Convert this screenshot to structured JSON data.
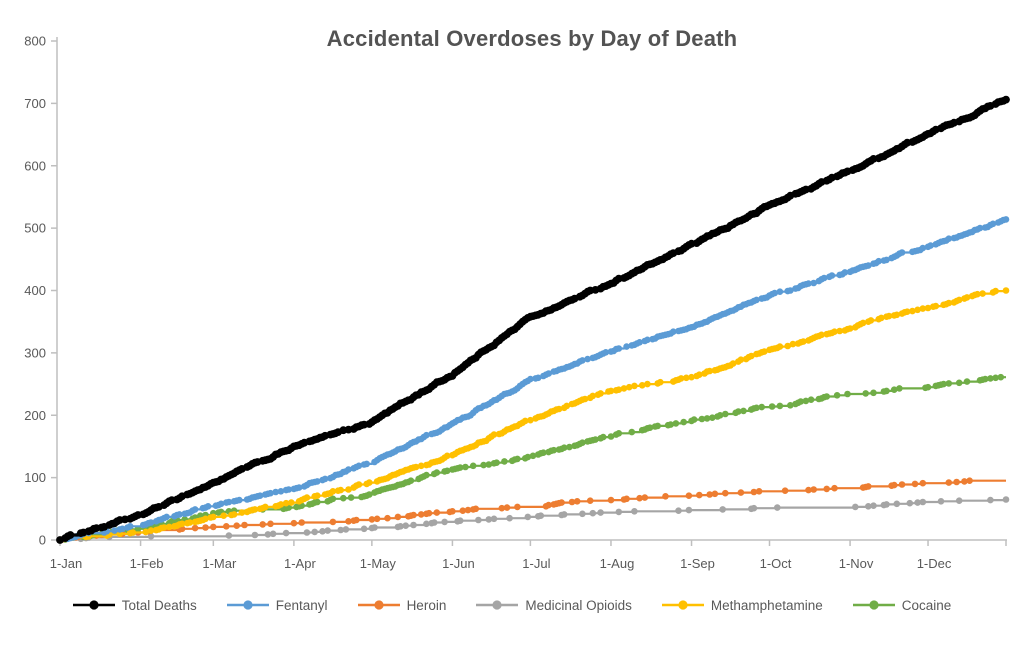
{
  "page": {
    "background": "#ffffff"
  },
  "chart_data": {
    "type": "line",
    "title": "Accidental Overdoses by Day of Death",
    "subtitle": "",
    "xlabel": "",
    "ylabel": "",
    "grid": false,
    "legend_position": "bottom",
    "marker_style": "circle",
    "axis_color": "#bfbfbf",
    "label_color": "#595959",
    "title_color": "#535353",
    "x_axis": {
      "tick_labels": [
        "1-Jan",
        "1-Feb",
        "1-Mar",
        "1-Apr",
        "1-May",
        "1-Jun",
        "1-Jul",
        "1-Aug",
        "1-Sep",
        "1-Oct",
        "1-Nov",
        "1-Dec"
      ],
      "anchor_dates": [
        "1-Jan",
        "1-Feb",
        "1-Mar",
        "1-Apr",
        "1-May",
        "1-Jun",
        "1-Jul",
        "1-Aug",
        "1-Sep",
        "1-Oct",
        "1-Nov",
        "1-Dec",
        "31-Dec"
      ],
      "anchor_days": [
        0,
        31,
        59,
        90,
        120,
        151,
        181,
        212,
        243,
        273,
        304,
        334,
        364
      ],
      "range_days": [
        0,
        364
      ]
    },
    "y_axis": {
      "min": 0,
      "max": 800,
      "tick_step": 100,
      "tick_labels": [
        "0",
        "100",
        "200",
        "300",
        "400",
        "500",
        "600",
        "700",
        "800"
      ]
    },
    "series": [
      {
        "name": "Total Deaths",
        "color": "#000000",
        "cumulative_anchor_values": [
          0,
          38,
          90,
          147,
          188,
          263,
          354,
          410,
          470,
          534,
          590,
          648,
          705
        ]
      },
      {
        "name": "Fentanyl",
        "color": "#5b9bd5",
        "cumulative_anchor_values": [
          0,
          22,
          54,
          80,
          122,
          183,
          253,
          300,
          340,
          390,
          430,
          470,
          510
        ]
      },
      {
        "name": "Heroin",
        "color": "#ed7d31",
        "cumulative_anchor_values": [
          0,
          10,
          18,
          24,
          30,
          43,
          53,
          62,
          70,
          75,
          80,
          88,
          93
        ]
      },
      {
        "name": "Medicinal Opioids",
        "color": "#a5a5a5",
        "cumulative_anchor_values": [
          0,
          2,
          3,
          8,
          17,
          27,
          37,
          41,
          44,
          48,
          50,
          58,
          62
        ]
      },
      {
        "name": "Methamphetamine",
        "color": "#ffc000",
        "cumulative_anchor_values": [
          0,
          11,
          34,
          59,
          91,
          135,
          192,
          239,
          258,
          303,
          340,
          372,
          400
        ]
      },
      {
        "name": "Cocaine",
        "color": "#70ad47",
        "cumulative_anchor_values": [
          0,
          18,
          43,
          50,
          74,
          111,
          131,
          167,
          190,
          211,
          232,
          245,
          260
        ]
      }
    ]
  }
}
